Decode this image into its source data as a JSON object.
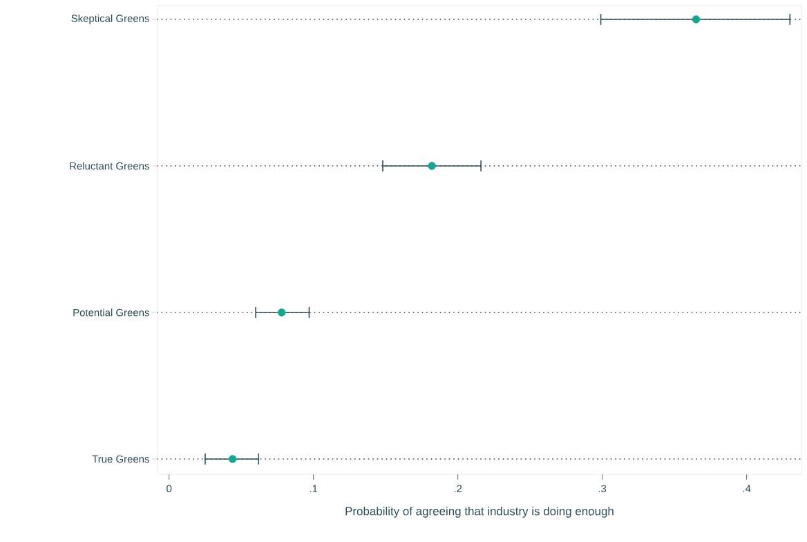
{
  "chart_data": {
    "type": "scatter",
    "orientation": "horizontal",
    "categories": [
      "Skeptical Greens",
      "Reluctant Greens",
      "Potential Greens",
      "True Greens"
    ],
    "values": [
      0.365,
      0.182,
      0.078,
      0.044
    ],
    "errors": [
      [
        0.299,
        0.43
      ],
      [
        0.148,
        0.216
      ],
      [
        0.06,
        0.097
      ],
      [
        0.025,
        0.062
      ]
    ],
    "color": "#12a892",
    "xlabel": "Probability of agreeing that industry is doing enough",
    "xlim": [
      -0.008,
      0.438
    ],
    "xticks": [
      0,
      {
        "value": 0.1,
        "label": ".1"
      },
      {
        "value": 0.2,
        "label": ".2"
      },
      {
        "value": 0.3,
        "label": ".3"
      },
      {
        "value": 0.4,
        "label": ".4"
      }
    ],
    "grid": "y",
    "marker": "circle"
  }
}
